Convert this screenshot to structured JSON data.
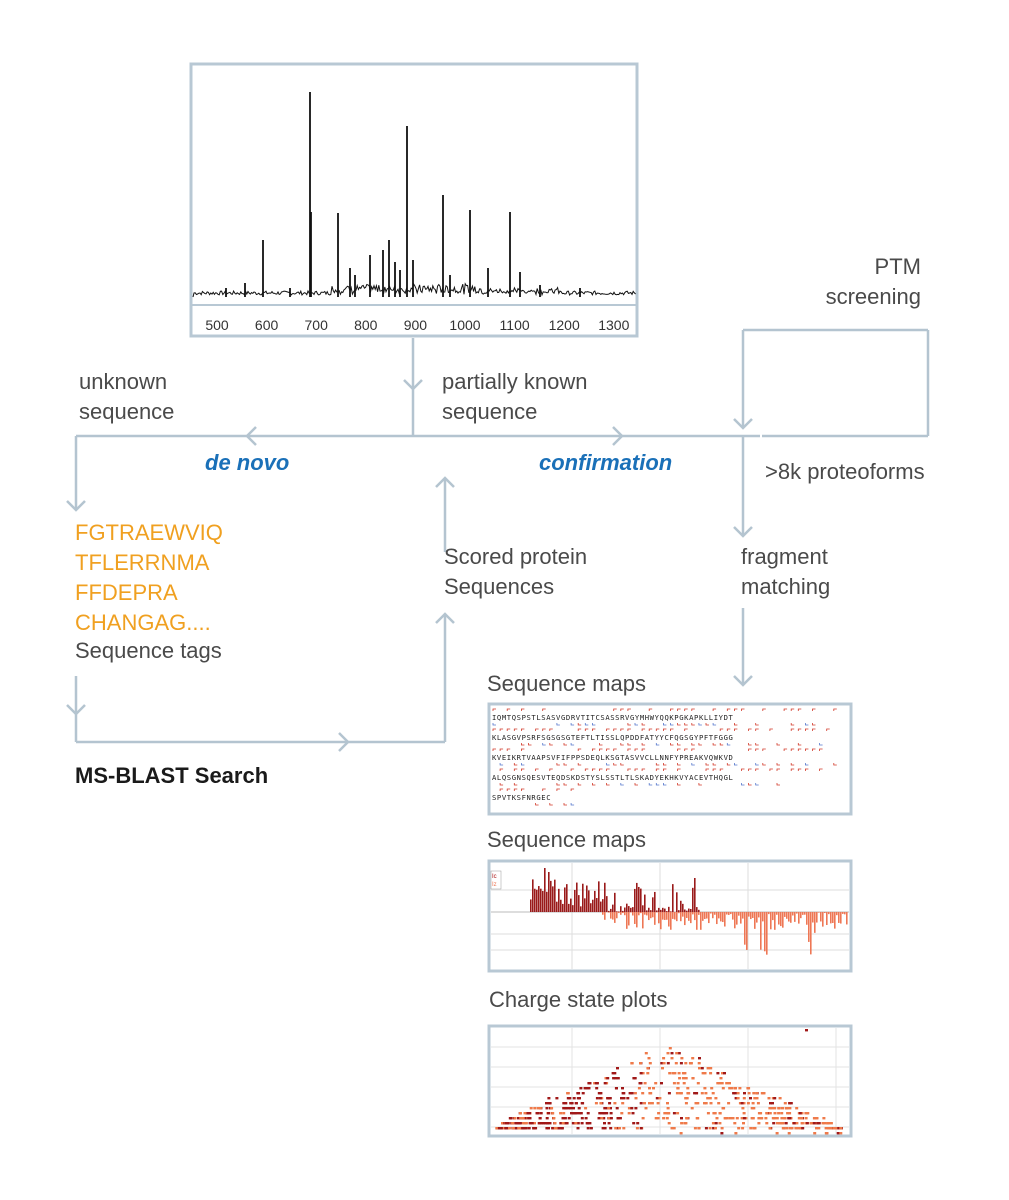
{
  "spectrum": {
    "tick_labels": [
      "500",
      "600",
      "700",
      "800",
      "900",
      "1000",
      "1100",
      "1200",
      "1300"
    ]
  },
  "labels": {
    "unknown_sequence": [
      "unknown",
      "sequence"
    ],
    "partially_known": [
      "partially known",
      "sequence"
    ],
    "ptm_screening": [
      "PTM",
      "screening"
    ],
    "de_novo": "de novo",
    "confirmation": "confirmation",
    "proteoforms": ">8k proteoforms",
    "scored_protein": [
      "Scored protein",
      "Sequences"
    ],
    "fragment_matching": [
      "fragment",
      "matching"
    ],
    "sequence_tags": [
      "FGTRAEWVIQ",
      "TFLERRNMA",
      "FFDEPRA",
      "CHANGAG...."
    ],
    "sequence_tags_caption": "Sequence tags",
    "ms_blast": "MS-BLAST Search",
    "panel_seqmap_title": "Sequence maps",
    "panel_bar_title": "Sequence maps",
    "panel_charge_title": "Charge state plots"
  },
  "sequence_map_lines": [
    "IQMTQSPSTLSASVGDRVTITCSASSRVGYMHWYQQKPGKAPKLLIYDT",
    "KLASGVPSRFSGSGSGTEFTLTISSLQPDDFATYYCFQGSGYPFTFGGG",
    "KVEIKRTVAAPSVFIFPPSDEQLKSGTASVVCLLNNFYPREAKVQWKVD",
    "ALQSGNSQESVTEQDSKDSTYSLSSTLTLSKADYEKHKVYACEVTHQGL",
    "SPVTKSFNRGEC"
  ],
  "bar_legend": [
    "Ic",
    "Iz"
  ],
  "colors": {
    "frame": "#b8c8d4",
    "arrow": "#b4c4d0",
    "accent_blue": "#1a70b8",
    "tag_orange": "#f0a020",
    "bar_dark": "#9a1a1a",
    "bar_light": "#ee7755"
  }
}
